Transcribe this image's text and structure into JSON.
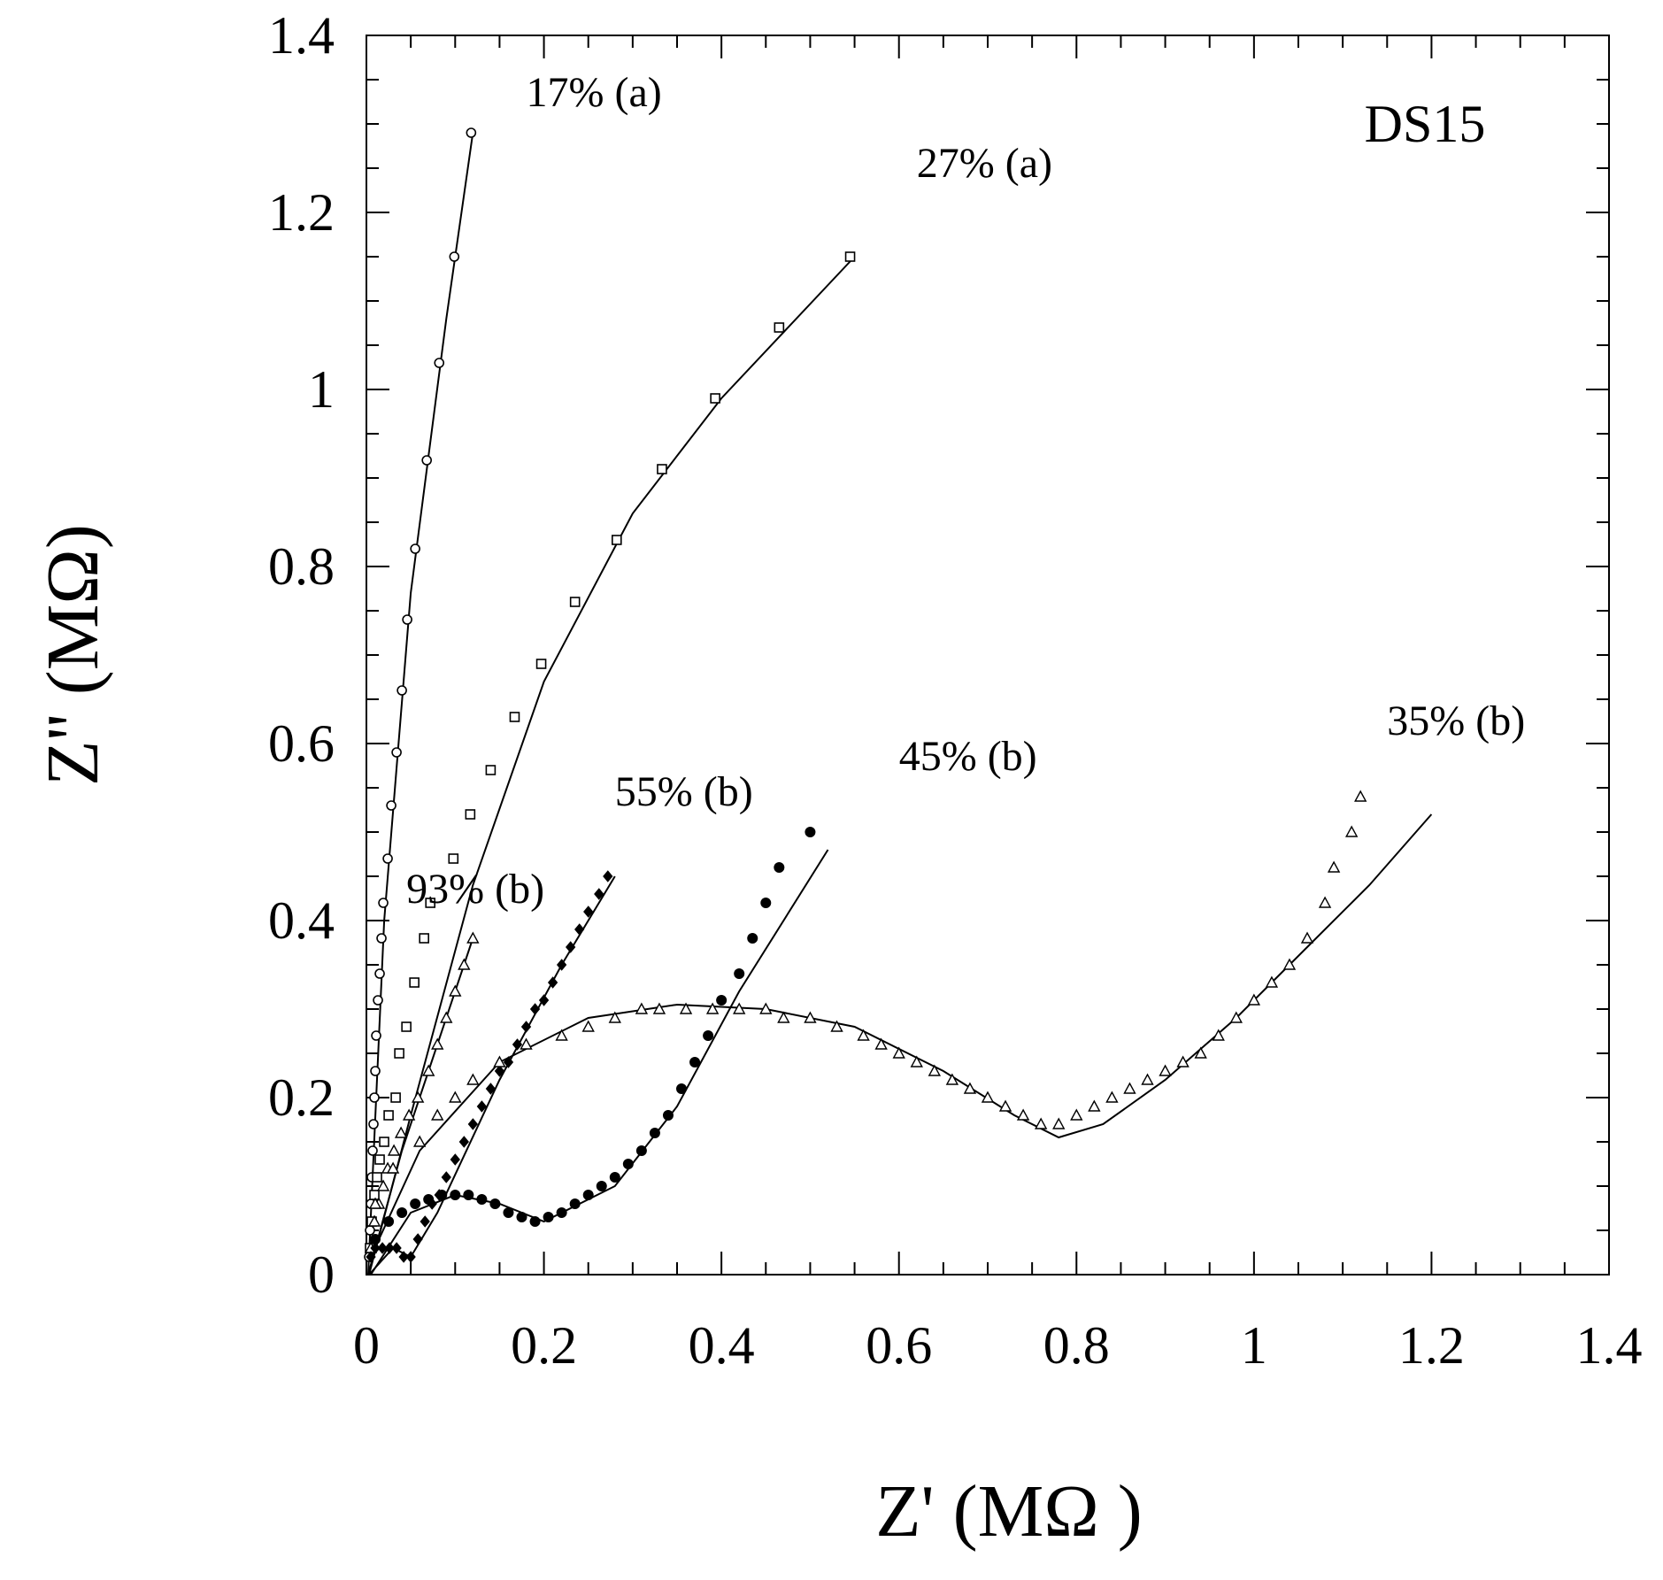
{
  "chart_data": {
    "type": "scatter",
    "title": "DS15",
    "xlabel": "Z' (MΩ )",
    "ylabel": "Z'' (MΩ)",
    "xlim": [
      0,
      1.4
    ],
    "ylim": [
      0,
      1.4
    ],
    "xticks": [
      "0",
      "0.2",
      "0.4",
      "0.6",
      "0.8",
      "1",
      "1.2",
      "1.4"
    ],
    "yticks": [
      "0",
      "0.2",
      "0.4",
      "0.6",
      "0.8",
      "1",
      "1.2",
      "1.4"
    ],
    "x_tick_values": [
      0,
      0.2,
      0.4,
      0.6,
      0.8,
      1.0,
      1.2,
      1.4
    ],
    "y_tick_values": [
      0,
      0.2,
      0.4,
      0.6,
      0.8,
      1.0,
      1.2,
      1.4
    ],
    "grid": false,
    "series": [
      {
        "name": "17% (a)",
        "marker": "circle",
        "label_pos": [
          0.18,
          1.32
        ],
        "points": [
          [
            0.003,
            0.02
          ],
          [
            0.004,
            0.05
          ],
          [
            0.005,
            0.08
          ],
          [
            0.006,
            0.11
          ],
          [
            0.007,
            0.14
          ],
          [
            0.008,
            0.17
          ],
          [
            0.009,
            0.2
          ],
          [
            0.01,
            0.23
          ],
          [
            0.011,
            0.27
          ],
          [
            0.013,
            0.31
          ],
          [
            0.015,
            0.34
          ],
          [
            0.017,
            0.38
          ],
          [
            0.019,
            0.42
          ],
          [
            0.024,
            0.47
          ],
          [
            0.028,
            0.53
          ],
          [
            0.034,
            0.59
          ],
          [
            0.04,
            0.66
          ],
          [
            0.046,
            0.74
          ],
          [
            0.055,
            0.82
          ],
          [
            0.068,
            0.92
          ],
          [
            0.082,
            1.03
          ],
          [
            0.099,
            1.15
          ],
          [
            0.118,
            1.29
          ]
        ],
        "fit": [
          [
            0.002,
            0.0
          ],
          [
            0.02,
            0.4
          ],
          [
            0.05,
            0.77
          ],
          [
            0.09,
            1.08
          ],
          [
            0.12,
            1.29
          ]
        ]
      },
      {
        "name": "27% (a)",
        "marker": "square",
        "label_pos": [
          0.62,
          1.24
        ],
        "points": [
          [
            0.004,
            0.03
          ],
          [
            0.006,
            0.06
          ],
          [
            0.009,
            0.09
          ],
          [
            0.012,
            0.11
          ],
          [
            0.015,
            0.13
          ],
          [
            0.02,
            0.15
          ],
          [
            0.025,
            0.18
          ],
          [
            0.033,
            0.2
          ],
          [
            0.037,
            0.25
          ],
          [
            0.045,
            0.28
          ],
          [
            0.054,
            0.33
          ],
          [
            0.065,
            0.38
          ],
          [
            0.072,
            0.42
          ],
          [
            0.098,
            0.47
          ],
          [
            0.117,
            0.52
          ],
          [
            0.14,
            0.57
          ],
          [
            0.167,
            0.63
          ],
          [
            0.197,
            0.69
          ],
          [
            0.235,
            0.76
          ],
          [
            0.282,
            0.83
          ],
          [
            0.333,
            0.91
          ],
          [
            0.393,
            0.99
          ],
          [
            0.465,
            1.07
          ],
          [
            0.545,
            1.15
          ]
        ],
        "fit": [
          [
            0.003,
            0.0
          ],
          [
            0.05,
            0.18
          ],
          [
            0.12,
            0.44
          ],
          [
            0.2,
            0.67
          ],
          [
            0.3,
            0.86
          ],
          [
            0.4,
            0.99
          ],
          [
            0.55,
            1.15
          ]
        ]
      },
      {
        "name": "93% (b)",
        "marker": "triangle",
        "label_pos": [
          0.045,
          0.42
        ],
        "points": [
          [
            0.005,
            0.03
          ],
          [
            0.009,
            0.06
          ],
          [
            0.014,
            0.08
          ],
          [
            0.019,
            0.1
          ],
          [
            0.024,
            0.12
          ],
          [
            0.031,
            0.14
          ],
          [
            0.039,
            0.16
          ],
          [
            0.048,
            0.18
          ],
          [
            0.058,
            0.2
          ],
          [
            0.07,
            0.23
          ],
          [
            0.08,
            0.26
          ],
          [
            0.09,
            0.29
          ],
          [
            0.1,
            0.32
          ],
          [
            0.11,
            0.35
          ],
          [
            0.12,
            0.38
          ]
        ],
        "fit": [
          [
            0.002,
            0.0
          ],
          [
            0.04,
            0.14
          ],
          [
            0.08,
            0.26
          ],
          [
            0.12,
            0.38
          ]
        ]
      },
      {
        "name": "55% (b)",
        "marker": "diamond",
        "label_pos": [
          0.28,
          0.53
        ],
        "points": [
          [
            0.005,
            0.02
          ],
          [
            0.01,
            0.03
          ],
          [
            0.018,
            0.03
          ],
          [
            0.026,
            0.03
          ],
          [
            0.034,
            0.03
          ],
          [
            0.042,
            0.02
          ],
          [
            0.05,
            0.02
          ],
          [
            0.058,
            0.04
          ],
          [
            0.066,
            0.06
          ],
          [
            0.074,
            0.08
          ],
          [
            0.082,
            0.09
          ],
          [
            0.09,
            0.11
          ],
          [
            0.1,
            0.13
          ],
          [
            0.11,
            0.15
          ],
          [
            0.12,
            0.17
          ],
          [
            0.13,
            0.19
          ],
          [
            0.14,
            0.21
          ],
          [
            0.15,
            0.23
          ],
          [
            0.16,
            0.24
          ],
          [
            0.17,
            0.26
          ],
          [
            0.18,
            0.28
          ],
          [
            0.19,
            0.3
          ],
          [
            0.2,
            0.31
          ],
          [
            0.21,
            0.33
          ],
          [
            0.22,
            0.35
          ],
          [
            0.23,
            0.37
          ],
          [
            0.24,
            0.39
          ],
          [
            0.25,
            0.41
          ],
          [
            0.262,
            0.43
          ],
          [
            0.272,
            0.45
          ]
        ],
        "fit": [
          [
            0.003,
            0.0
          ],
          [
            0.03,
            0.03
          ],
          [
            0.05,
            0.02
          ],
          [
            0.08,
            0.07
          ],
          [
            0.15,
            0.22
          ],
          [
            0.22,
            0.35
          ],
          [
            0.28,
            0.45
          ]
        ]
      },
      {
        "name": "45% (b)",
        "marker": "filled-circle",
        "label_pos": [
          0.6,
          0.57
        ],
        "points": [
          [
            0.01,
            0.04
          ],
          [
            0.025,
            0.06
          ],
          [
            0.04,
            0.07
          ],
          [
            0.055,
            0.08
          ],
          [
            0.07,
            0.085
          ],
          [
            0.085,
            0.09
          ],
          [
            0.1,
            0.09
          ],
          [
            0.115,
            0.09
          ],
          [
            0.13,
            0.085
          ],
          [
            0.145,
            0.08
          ],
          [
            0.16,
            0.07
          ],
          [
            0.175,
            0.065
          ],
          [
            0.19,
            0.06
          ],
          [
            0.205,
            0.065
          ],
          [
            0.22,
            0.07
          ],
          [
            0.235,
            0.08
          ],
          [
            0.25,
            0.09
          ],
          [
            0.265,
            0.1
          ],
          [
            0.28,
            0.11
          ],
          [
            0.295,
            0.125
          ],
          [
            0.31,
            0.14
          ],
          [
            0.325,
            0.16
          ],
          [
            0.34,
            0.18
          ],
          [
            0.355,
            0.21
          ],
          [
            0.37,
            0.24
          ],
          [
            0.385,
            0.27
          ],
          [
            0.4,
            0.31
          ],
          [
            0.42,
            0.34
          ],
          [
            0.435,
            0.38
          ],
          [
            0.45,
            0.42
          ],
          [
            0.465,
            0.46
          ],
          [
            0.5,
            0.5
          ]
        ],
        "fit": [
          [
            0.005,
            0.0
          ],
          [
            0.05,
            0.07
          ],
          [
            0.1,
            0.09
          ],
          [
            0.15,
            0.08
          ],
          [
            0.2,
            0.06
          ],
          [
            0.28,
            0.1
          ],
          [
            0.35,
            0.19
          ],
          [
            0.42,
            0.32
          ],
          [
            0.52,
            0.48
          ]
        ]
      },
      {
        "name": "35% (b)",
        "marker": "triangle",
        "label_pos": [
          1.15,
          0.61
        ],
        "points": [
          [
            0.01,
            0.08
          ],
          [
            0.03,
            0.12
          ],
          [
            0.06,
            0.15
          ],
          [
            0.08,
            0.18
          ],
          [
            0.1,
            0.2
          ],
          [
            0.12,
            0.22
          ],
          [
            0.15,
            0.24
          ],
          [
            0.18,
            0.26
          ],
          [
            0.22,
            0.27
          ],
          [
            0.25,
            0.28
          ],
          [
            0.28,
            0.29
          ],
          [
            0.31,
            0.3
          ],
          [
            0.33,
            0.3
          ],
          [
            0.36,
            0.3
          ],
          [
            0.39,
            0.3
          ],
          [
            0.42,
            0.3
          ],
          [
            0.45,
            0.3
          ],
          [
            0.47,
            0.29
          ],
          [
            0.5,
            0.29
          ],
          [
            0.53,
            0.28
          ],
          [
            0.56,
            0.27
          ],
          [
            0.58,
            0.26
          ],
          [
            0.6,
            0.25
          ],
          [
            0.62,
            0.24
          ],
          [
            0.64,
            0.23
          ],
          [
            0.66,
            0.22
          ],
          [
            0.68,
            0.21
          ],
          [
            0.7,
            0.2
          ],
          [
            0.72,
            0.19
          ],
          [
            0.74,
            0.18
          ],
          [
            0.76,
            0.17
          ],
          [
            0.78,
            0.17
          ],
          [
            0.8,
            0.18
          ],
          [
            0.82,
            0.19
          ],
          [
            0.84,
            0.2
          ],
          [
            0.86,
            0.21
          ],
          [
            0.88,
            0.22
          ],
          [
            0.9,
            0.23
          ],
          [
            0.92,
            0.24
          ],
          [
            0.94,
            0.25
          ],
          [
            0.96,
            0.27
          ],
          [
            0.98,
            0.29
          ],
          [
            1.0,
            0.31
          ],
          [
            1.02,
            0.33
          ],
          [
            1.04,
            0.35
          ],
          [
            1.06,
            0.38
          ],
          [
            1.08,
            0.42
          ],
          [
            1.09,
            0.46
          ],
          [
            1.11,
            0.5
          ],
          [
            1.12,
            0.54
          ]
        ],
        "fit": [
          [
            0.005,
            0.02
          ],
          [
            0.06,
            0.14
          ],
          [
            0.15,
            0.24
          ],
          [
            0.25,
            0.29
          ],
          [
            0.35,
            0.305
          ],
          [
            0.45,
            0.3
          ],
          [
            0.55,
            0.28
          ],
          [
            0.65,
            0.23
          ],
          [
            0.73,
            0.18
          ],
          [
            0.78,
            0.155
          ],
          [
            0.83,
            0.17
          ],
          [
            0.9,
            0.22
          ],
          [
            0.98,
            0.29
          ],
          [
            1.06,
            0.37
          ],
          [
            1.13,
            0.44
          ],
          [
            1.2,
            0.52
          ]
        ]
      }
    ]
  }
}
